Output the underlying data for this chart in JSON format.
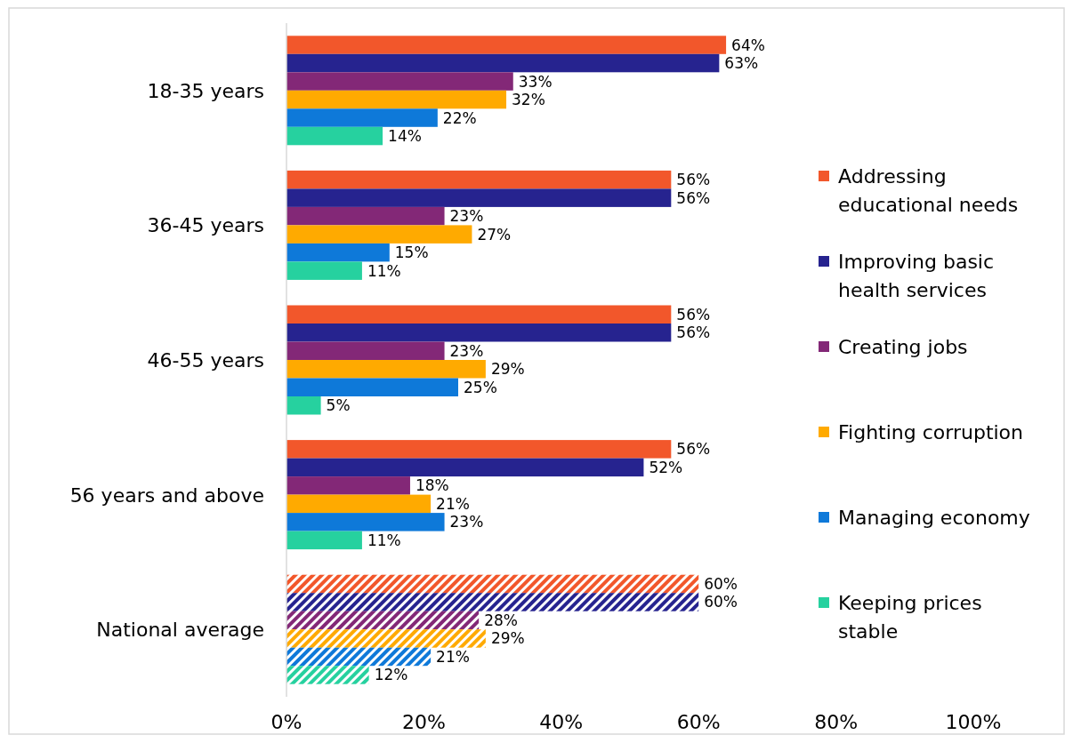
{
  "chart_data": {
    "type": "bar",
    "orientation": "horizontal",
    "categories": [
      "18-35 years",
      "36-45 years",
      "46-55 years",
      "56 years and above",
      "National average"
    ],
    "series": [
      {
        "name": "Addressing educational needs",
        "color": "#f2572b",
        "values": [
          64,
          56,
          56,
          56,
          60
        ],
        "value_labels": [
          "64%",
          "56%",
          "56%",
          "56%",
          "60%"
        ]
      },
      {
        "name": "Improving basic health services",
        "color": "#26238f",
        "values": [
          63,
          56,
          56,
          52,
          60
        ],
        "value_labels": [
          "63%",
          "56%",
          "56%",
          "52%",
          "60%"
        ]
      },
      {
        "name": "Creating jobs",
        "color": "#832877",
        "values": [
          33,
          23,
          23,
          18,
          28
        ],
        "value_labels": [
          "33%",
          "23%",
          "23%",
          "18%",
          "28%"
        ]
      },
      {
        "name": "Fighting corruption",
        "color": "#ffaa00",
        "values": [
          32,
          27,
          29,
          21,
          29
        ],
        "value_labels": [
          "32%",
          "27%",
          "29%",
          "21%",
          "29%"
        ]
      },
      {
        "name": "Managing economy",
        "color": "#0e79d9",
        "values": [
          22,
          15,
          25,
          23,
          21
        ],
        "value_labels": [
          "22%",
          "15%",
          "25%",
          "23%",
          "21%"
        ]
      },
      {
        "name": "Keeping prices stable",
        "color": "#26d19f",
        "values": [
          14,
          11,
          5,
          11,
          12
        ],
        "value_labels": [
          "14%",
          "11%",
          "5%",
          "11%",
          "12%"
        ]
      }
    ],
    "xlim": [
      0,
      100
    ],
    "xticks": [
      {
        "value": 0,
        "label": "0%"
      },
      {
        "value": 20,
        "label": "20%"
      },
      {
        "value": 40,
        "label": "40%"
      },
      {
        "value": 60,
        "label": "60%"
      },
      {
        "value": 80,
        "label": "80%"
      },
      {
        "value": 100,
        "label": "100%"
      }
    ],
    "legend": "right"
  }
}
